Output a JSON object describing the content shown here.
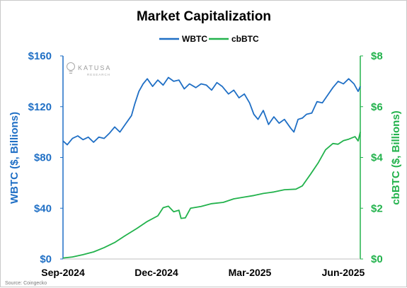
{
  "chart_data": {
    "type": "line",
    "title": "Market Capitalization",
    "x_ticks": [
      "Sep-2024",
      "Dec-2024",
      "Mar-2025",
      "Jun-2025"
    ],
    "x_range": [
      "2024-09-01",
      "2025-06-10"
    ],
    "y_left": {
      "label": "WBTC ($, Billions)",
      "range": [
        0,
        160
      ],
      "ticks": [
        0,
        40,
        80,
        120,
        160
      ],
      "tick_labels": [
        "$0",
        "$40",
        "$80",
        "$120",
        "$160"
      ],
      "color": "#1F6FC5"
    },
    "y_right": {
      "label": "cbBTC ($, Billions)",
      "range": [
        0,
        8
      ],
      "ticks": [
        0,
        2,
        4,
        6,
        8
      ],
      "tick_labels": [
        "$0",
        "$2",
        "$4",
        "$6",
        "$8"
      ],
      "color": "#22B24C"
    },
    "grid": false,
    "legend": "top-center",
    "series": [
      {
        "name": "WBTC",
        "axis": "left",
        "color": "#1F6FC5",
        "x": [
          "2024-09-01",
          "2024-09-05",
          "2024-09-10",
          "2024-09-15",
          "2024-09-20",
          "2024-09-25",
          "2024-09-30",
          "2024-10-05",
          "2024-10-10",
          "2024-10-15",
          "2024-10-20",
          "2024-10-25",
          "2024-10-30",
          "2024-11-05",
          "2024-11-08",
          "2024-11-12",
          "2024-11-16",
          "2024-11-20",
          "2024-11-25",
          "2024-11-30",
          "2024-12-05",
          "2024-12-10",
          "2024-12-15",
          "2024-12-20",
          "2024-12-25",
          "2024-12-30",
          "2025-01-05",
          "2025-01-10",
          "2025-01-15",
          "2025-01-20",
          "2025-01-25",
          "2025-01-30",
          "2025-02-05",
          "2025-02-10",
          "2025-02-15",
          "2025-02-20",
          "2025-02-25",
          "2025-03-01",
          "2025-03-05",
          "2025-03-10",
          "2025-03-15",
          "2025-03-20",
          "2025-03-25",
          "2025-03-30",
          "2025-04-05",
          "2025-04-08",
          "2025-04-12",
          "2025-04-16",
          "2025-04-20",
          "2025-04-25",
          "2025-04-30",
          "2025-05-05",
          "2025-05-10",
          "2025-05-15",
          "2025-05-20",
          "2025-05-25",
          "2025-05-30",
          "2025-06-04",
          "2025-06-08",
          "2025-06-10"
        ],
        "values": [
          93,
          90,
          95,
          97,
          94,
          96,
          92,
          96,
          95,
          99,
          104,
          100,
          106,
          113,
          122,
          132,
          138,
          142,
          136,
          141,
          137,
          143,
          140,
          141,
          134,
          138,
          135,
          138,
          137,
          133,
          139,
          136,
          130,
          133,
          127,
          130,
          123,
          114,
          110,
          117,
          106,
          112,
          107,
          110,
          103,
          100,
          110,
          111,
          114,
          115,
          124,
          123,
          129,
          135,
          140,
          138,
          142,
          138,
          132,
          136
        ]
      },
      {
        "name": "cbBTC",
        "axis": "right",
        "color": "#22B24C",
        "x": [
          "2024-09-01",
          "2024-09-10",
          "2024-09-20",
          "2024-09-30",
          "2024-10-10",
          "2024-10-20",
          "2024-10-30",
          "2024-11-10",
          "2024-11-20",
          "2024-11-30",
          "2024-12-05",
          "2024-12-10",
          "2024-12-15",
          "2024-12-20",
          "2024-12-22",
          "2024-12-26",
          "2024-12-31",
          "2025-01-10",
          "2025-01-20",
          "2025-01-31",
          "2025-02-10",
          "2025-02-20",
          "2025-03-01",
          "2025-03-10",
          "2025-03-20",
          "2025-03-30",
          "2025-04-10",
          "2025-04-16",
          "2025-04-24",
          "2025-05-01",
          "2025-05-08",
          "2025-05-15",
          "2025-05-20",
          "2025-05-25",
          "2025-05-30",
          "2025-06-05",
          "2025-06-08",
          "2025-06-10"
        ],
        "values": [
          0.04,
          0.08,
          0.17,
          0.28,
          0.45,
          0.65,
          0.92,
          1.2,
          1.48,
          1.7,
          2.02,
          2.08,
          1.86,
          1.92,
          1.6,
          1.62,
          2.0,
          2.07,
          2.18,
          2.23,
          2.37,
          2.44,
          2.5,
          2.58,
          2.64,
          2.73,
          2.75,
          2.88,
          3.35,
          3.78,
          4.3,
          4.55,
          4.52,
          4.66,
          4.72,
          4.82,
          4.65,
          5.0
        ]
      }
    ],
    "source": "Source: Coingecko",
    "watermark": {
      "name": "KATUSA",
      "sub": "RESEARCH"
    }
  }
}
